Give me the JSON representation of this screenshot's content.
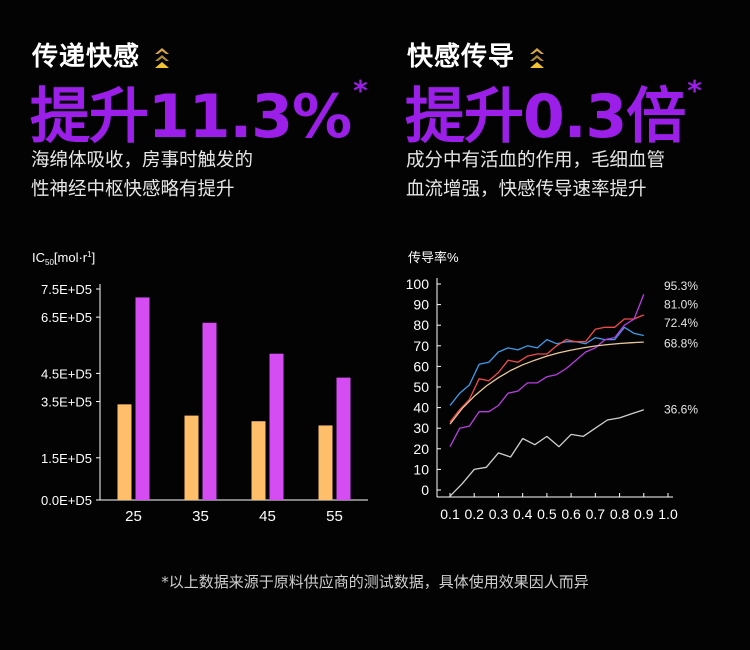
{
  "colors": {
    "background": "#030303",
    "highlight": "#9b1fe8",
    "chevron_top": "#d4a54a",
    "chevron_bottom": "#f1c232",
    "bar_series_1": "#ffbe6a",
    "bar_series_2": "#d44cf2",
    "line_blue": "#3d9be8",
    "line_red": "#f24a4a",
    "line_purple": "#b73ee0",
    "line_beige": "#e8c89a",
    "line_white": "#cfcfcf"
  },
  "left_panel": {
    "title": "传递快感",
    "highlight": "提升11.3%",
    "asterisk": "*",
    "desc_line1": "海绵体吸收，房事时触发的",
    "desc_line2": "性神经中枢快感略有提升"
  },
  "right_panel": {
    "title": "快感传导",
    "highlight": "提升0.3倍",
    "asterisk": "*",
    "desc_line1": "成分中有活血的作用，毛细血管",
    "desc_line2": "血流增强，快感传导速率提升"
  },
  "footnote": "*以上数据来源于原料供应商的测试数据，具体使用效果因人而异",
  "chart_data": [
    {
      "type": "bar",
      "ylabel_main": "IC",
      "ylabel_sub": "50",
      "ylabel_rest": "[mol·r",
      "ylabel_sup": "1",
      "ylabel_close": "]",
      "categories": [
        "25",
        "35",
        "45",
        "55"
      ],
      "y_ticks": [
        "0.0E+D5",
        "1.5E+D5",
        "3.5E+D5",
        "4.5E+D5",
        "6.5E+D5",
        "7.5E+D5"
      ],
      "tick_values": [
        0,
        1.5,
        3.5,
        4.5,
        6.5,
        7.5
      ],
      "ylim": [
        0,
        7.5
      ],
      "series": [
        {
          "name": "series-1",
          "values": [
            3.4,
            3.0,
            2.8,
            2.65
          ]
        },
        {
          "name": "series-2",
          "values": [
            7.2,
            6.3,
            5.2,
            4.35
          ]
        }
      ]
    },
    {
      "type": "line",
      "ylabel": "传导率%",
      "x_ticks": [
        "0.1",
        "0.2",
        "0.3",
        "0.4",
        "0.5",
        "0.6",
        "0.7",
        "0.8",
        "0.9",
        "1.0"
      ],
      "x_tick_values": [
        0.1,
        0.2,
        0.3,
        0.4,
        0.5,
        0.6,
        0.7,
        0.8,
        0.9,
        1.0
      ],
      "y_ticks": [
        "0",
        "10",
        "20",
        "30",
        "40",
        "50",
        "60",
        "70",
        "80",
        "90",
        "100"
      ],
      "y_tick_values": [
        0,
        10,
        20,
        30,
        40,
        50,
        60,
        70,
        80,
        90,
        100
      ],
      "xlim": [
        0.1,
        1.0
      ],
      "ylim": [
        0,
        100
      ],
      "series": [
        {
          "name": "blue",
          "label": "72.4%",
          "label_y": 81,
          "x": [
            0.1,
            0.14,
            0.18,
            0.22,
            0.26,
            0.3,
            0.34,
            0.38,
            0.42,
            0.46,
            0.5,
            0.54,
            0.58,
            0.62,
            0.66,
            0.7,
            0.74,
            0.78,
            0.82,
            0.86,
            0.9
          ],
          "y": [
            41,
            47,
            51,
            61,
            62,
            67,
            69,
            68,
            70,
            69,
            73,
            71,
            72,
            72,
            71,
            74,
            73,
            73,
            79,
            76,
            75
          ]
        },
        {
          "name": "red",
          "label": "81.0%",
          "label_y": 90,
          "x": [
            0.1,
            0.14,
            0.18,
            0.22,
            0.26,
            0.3,
            0.34,
            0.38,
            0.42,
            0.46,
            0.5,
            0.54,
            0.58,
            0.62,
            0.66,
            0.7,
            0.74,
            0.78,
            0.82,
            0.86,
            0.9
          ],
          "y": [
            33,
            39,
            44,
            54,
            53,
            57,
            63,
            62,
            65,
            66,
            66,
            70,
            73,
            72,
            72,
            78,
            79,
            79,
            83,
            83,
            85
          ]
        },
        {
          "name": "purple",
          "label": "95.3%",
          "label_y": 99,
          "x": [
            0.1,
            0.14,
            0.18,
            0.22,
            0.26,
            0.3,
            0.34,
            0.38,
            0.42,
            0.46,
            0.5,
            0.54,
            0.58,
            0.62,
            0.66,
            0.7,
            0.74,
            0.78,
            0.82,
            0.86,
            0.9
          ],
          "y": [
            21,
            30,
            31,
            38,
            38,
            41,
            47,
            48,
            52,
            52,
            55,
            56,
            59,
            63,
            67,
            69,
            73,
            74,
            80,
            83,
            95
          ]
        },
        {
          "name": "beige",
          "label": "68.8%",
          "label_y": 71,
          "x": [
            0.1,
            0.15,
            0.2,
            0.25,
            0.3,
            0.35,
            0.4,
            0.45,
            0.5,
            0.55,
            0.6,
            0.65,
            0.7,
            0.75,
            0.8,
            0.85,
            0.9
          ],
          "y": [
            32,
            39.5,
            45.5,
            50.5,
            54.5,
            58,
            60.8,
            63,
            65,
            66.6,
            67.9,
            69,
            69.9,
            70.6,
            71.1,
            71.5,
            71.8
          ]
        },
        {
          "name": "white",
          "label": "36.6%",
          "label_y": 39,
          "x": [
            0.1,
            0.15,
            0.2,
            0.25,
            0.3,
            0.35,
            0.4,
            0.45,
            0.5,
            0.55,
            0.6,
            0.65,
            0.7,
            0.75,
            0.8,
            0.85,
            0.9
          ],
          "y": [
            -3,
            3,
            10,
            11,
            18,
            16,
            25,
            22,
            26,
            21,
            27,
            26,
            30,
            34,
            35,
            37,
            39
          ]
        }
      ]
    }
  ]
}
